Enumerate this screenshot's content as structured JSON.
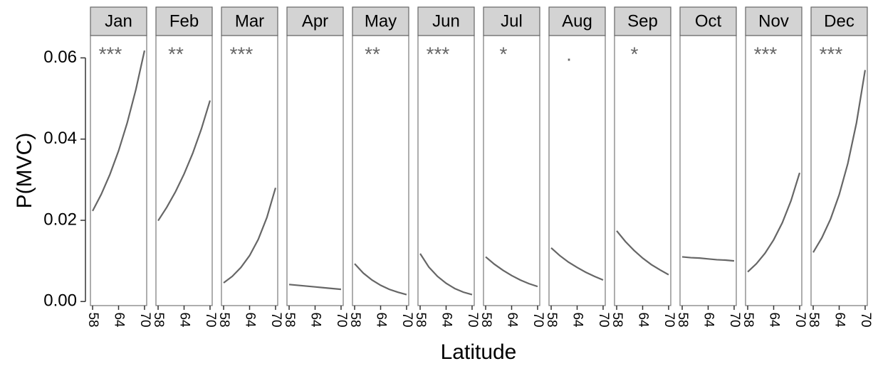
{
  "chart_data": {
    "type": "line",
    "x_label": "Latitude",
    "y_label": "P(MVC)",
    "x": [
      58,
      60,
      62,
      64,
      66,
      68,
      70
    ],
    "xlim": [
      57.5,
      70.5
    ],
    "xticks": [
      58,
      64,
      70
    ],
    "ylim": [
      -0.001,
      0.0655
    ],
    "yticks": [
      {
        "value": 0,
        "label": "0.00"
      },
      0.02,
      0.04,
      0.06
    ],
    "color": "#666666",
    "series": [
      {
        "name": "Jan",
        "annotation": "***",
        "values": [
          0.0223,
          0.0264,
          0.0313,
          0.0371,
          0.044,
          0.0522,
          0.0618
        ]
      },
      {
        "name": "Feb",
        "annotation": "**",
        "values": [
          0.0199,
          0.0232,
          0.027,
          0.0314,
          0.0365,
          0.0425,
          0.0495
        ]
      },
      {
        "name": "Mar",
        "annotation": "***",
        "values": [
          0.0046,
          0.0062,
          0.0084,
          0.0113,
          0.0153,
          0.0207,
          0.028
        ]
      },
      {
        "name": "Apr",
        "values": [
          0.0042,
          0.004,
          0.0038,
          0.0036,
          0.0034,
          0.0032,
          0.003
        ]
      },
      {
        "name": "May",
        "annotation": "**",
        "values": [
          0.0093,
          0.007,
          0.0053,
          0.004,
          0.003,
          0.0023,
          0.0017
        ]
      },
      {
        "name": "Jun",
        "annotation": "***",
        "values": [
          0.0118,
          0.0085,
          0.0062,
          0.0045,
          0.0032,
          0.0023,
          0.0017
        ]
      },
      {
        "name": "Jul",
        "annotation": "*",
        "values": [
          0.011,
          0.0092,
          0.0077,
          0.0064,
          0.0053,
          0.0044,
          0.0037
        ]
      },
      {
        "name": "Aug",
        "annotation": ".",
        "values": [
          0.0132,
          0.0113,
          0.0097,
          0.0084,
          0.0072,
          0.0062,
          0.0053
        ]
      },
      {
        "name": "Sep",
        "annotation": "*",
        "values": [
          0.0174,
          0.0148,
          0.0126,
          0.0107,
          0.0091,
          0.0078,
          0.0066
        ]
      },
      {
        "name": "Oct",
        "values": [
          0.011,
          0.0108,
          0.0107,
          0.0105,
          0.0103,
          0.0102,
          0.01
        ]
      },
      {
        "name": "Nov",
        "annotation": "***",
        "values": [
          0.0073,
          0.0093,
          0.0119,
          0.0152,
          0.0194,
          0.0248,
          0.0317
        ]
      },
      {
        "name": "Dec",
        "annotation": "***",
        "values": [
          0.0121,
          0.0157,
          0.0203,
          0.0263,
          0.034,
          0.044,
          0.057
        ]
      }
    ]
  }
}
